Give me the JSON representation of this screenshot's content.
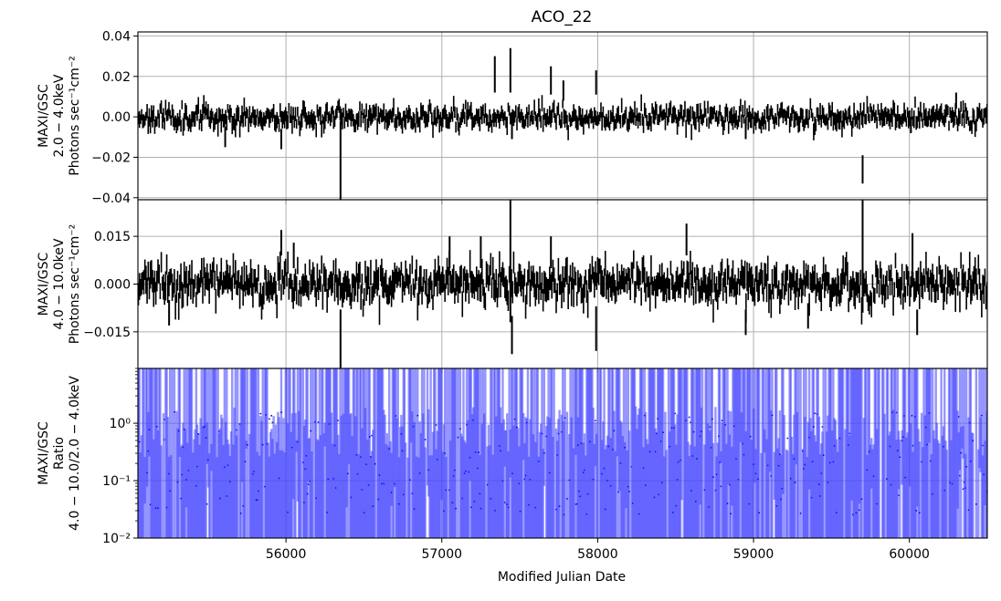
{
  "title": "ACO_22",
  "xlabel": "Modified Julian Date",
  "chart_data": [
    {
      "type": "line",
      "style": "errorbar",
      "color": "#000000",
      "ylabel_lines": [
        "MAXI/GSC",
        "2.0 − 4.0keV",
        "Photons sec⁻¹cm⁻²"
      ],
      "xlim": [
        55050,
        60500
      ],
      "ylim": [
        -0.041,
        0.042
      ],
      "xticks": [],
      "yticks": [
        {
          "v": -0.04,
          "label": "−0.04"
        },
        {
          "v": -0.02,
          "label": "−0.02"
        },
        {
          "v": 0.0,
          "label": "0.00"
        },
        {
          "v": 0.02,
          "label": "0.02"
        },
        {
          "v": 0.04,
          "label": "0.04"
        }
      ],
      "grid": true,
      "noise": {
        "seed": 11,
        "step": 7,
        "sigma": 0.0026,
        "err": 0.0035
      },
      "spikes": [
        [
          55610,
          -0.01,
          0.005
        ],
        [
          55970,
          -0.011,
          0.005
        ],
        [
          56350,
          -0.022,
          0.02
        ],
        [
          57340,
          0.021,
          0.009
        ],
        [
          57440,
          0.023,
          0.011
        ],
        [
          57450,
          -0.006,
          0.005
        ],
        [
          57700,
          0.018,
          0.007
        ],
        [
          57780,
          0.013,
          0.005
        ],
        [
          57990,
          0.017,
          0.006
        ],
        [
          58950,
          -0.006,
          0.005
        ],
        [
          59700,
          -0.026,
          0.007
        ],
        [
          60010,
          -0.004,
          0.004
        ],
        [
          60300,
          0.008,
          0.004
        ]
      ]
    },
    {
      "type": "line",
      "style": "errorbar",
      "color": "#000000",
      "ylabel_lines": [
        "MAXI/GSC",
        "4.0 − 10.0keV",
        "Photons sec⁻¹cm⁻²"
      ],
      "xlim": [
        55050,
        60500
      ],
      "ylim": [
        -0.0265,
        0.0265
      ],
      "xticks": [],
      "yticks": [
        {
          "v": -0.015,
          "label": "−0.015"
        },
        {
          "v": 0.0,
          "label": "0.000"
        },
        {
          "v": 0.015,
          "label": "0.015"
        }
      ],
      "grid": true,
      "noise": {
        "seed": 23,
        "step": 7,
        "sigma": 0.0028,
        "err": 0.0036
      },
      "spikes": [
        [
          55250,
          -0.009,
          0.004
        ],
        [
          55970,
          0.013,
          0.004
        ],
        [
          56050,
          0.009,
          0.004
        ],
        [
          56350,
          -0.018,
          0.01
        ],
        [
          57050,
          0.01,
          0.005
        ],
        [
          57250,
          0.01,
          0.005
        ],
        [
          57440,
          0.008,
          0.02
        ],
        [
          57450,
          -0.016,
          0.006
        ],
        [
          57700,
          0.01,
          0.005
        ],
        [
          57990,
          -0.014,
          0.007
        ],
        [
          58570,
          0.014,
          0.005
        ],
        [
          58950,
          -0.012,
          0.004
        ],
        [
          59350,
          -0.01,
          0.004
        ],
        [
          59700,
          0.009,
          0.018
        ],
        [
          60020,
          0.009,
          0.007
        ],
        [
          60050,
          -0.012,
          0.004
        ]
      ]
    },
    {
      "type": "scatter",
      "style": "errorbar",
      "color": "#0000ff",
      "ylabel_lines": [
        "MAXI/GSC",
        "Ratio",
        "4.0 − 10.0/2.0 − 4.0keV"
      ],
      "xlim": [
        55050,
        60500
      ],
      "ylim": [
        0.01,
        9.0
      ],
      "yscale": "log",
      "xticks": [
        {
          "v": 56000,
          "label": "56000"
        },
        {
          "v": 57000,
          "label": "57000"
        },
        {
          "v": 58000,
          "label": "58000"
        },
        {
          "v": 59000,
          "label": "59000"
        },
        {
          "v": 60000,
          "label": "60000"
        }
      ],
      "yticks": [
        {
          "v": 0.01,
          "label": "10⁻²"
        },
        {
          "v": 0.1,
          "label": "10⁻¹"
        },
        {
          "v": 1.0,
          "label": "10⁰"
        }
      ],
      "grid": true,
      "noise": {
        "seed": 37,
        "step": 7
      }
    }
  ]
}
